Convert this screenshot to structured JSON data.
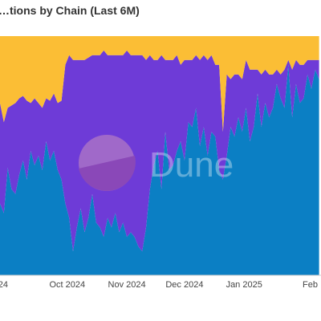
{
  "chart_data": {
    "type": "area",
    "stacked": true,
    "normalized": true,
    "title": "…tions by Chain (Last 6M)",
    "xlabel": "",
    "ylabel": "",
    "ylim": [
      0,
      1
    ],
    "x_tick_labels": [
      "…24",
      "Oct 2024",
      "Nov 2024",
      "Dec 2024",
      "Jan 2025",
      "Feb …"
    ],
    "x_range": [
      "2024-09-10",
      "2025-02-24"
    ],
    "grid": false,
    "legend": "none",
    "watermark": "Dune",
    "x": [
      "2024-09-10",
      "2024-09-12",
      "2024-09-14",
      "2024-09-16",
      "2024-09-18",
      "2024-09-20",
      "2024-09-22",
      "2024-09-24",
      "2024-09-26",
      "2024-09-28",
      "2024-09-30",
      "2024-10-02",
      "2024-10-04",
      "2024-10-06",
      "2024-10-08",
      "2024-10-10",
      "2024-10-12",
      "2024-10-14",
      "2024-10-16",
      "2024-10-18",
      "2024-10-20",
      "2024-10-22",
      "2024-10-24",
      "2024-10-26",
      "2024-10-28",
      "2024-10-30",
      "2024-11-01",
      "2024-11-03",
      "2024-11-05",
      "2024-11-07",
      "2024-11-09",
      "2024-11-11",
      "2024-11-13",
      "2024-11-15",
      "2024-11-17",
      "2024-11-19",
      "2024-11-21",
      "2024-11-23",
      "2024-11-25",
      "2024-11-27",
      "2024-11-29",
      "2024-12-01",
      "2024-12-03",
      "2024-12-05",
      "2024-12-07",
      "2024-12-09",
      "2024-12-11",
      "2024-12-13",
      "2024-12-15",
      "2024-12-17",
      "2024-12-19",
      "2024-12-21",
      "2024-12-23",
      "2024-12-25",
      "2024-12-27",
      "2024-12-29",
      "2024-12-31",
      "2025-01-02",
      "2025-01-04",
      "2025-01-06",
      "2025-01-08",
      "2025-01-10",
      "2025-01-12",
      "2025-01-14",
      "2025-01-16",
      "2025-01-18",
      "2025-01-20",
      "2025-01-22",
      "2025-01-24",
      "2025-01-26",
      "2025-01-28",
      "2025-01-30",
      "2025-02-01",
      "2025-02-03",
      "2025-02-05",
      "2025-02-07",
      "2025-02-09",
      "2025-02-11",
      "2025-02-13",
      "2025-02-15",
      "2025-02-17",
      "2025-02-19",
      "2025-02-21",
      "2025-02-23"
    ],
    "series": [
      {
        "color": "#0b7fc4",
        "values": [
          0.3,
          0.26,
          0.45,
          0.36,
          0.34,
          0.42,
          0.48,
          0.4,
          0.52,
          0.46,
          0.5,
          0.44,
          0.56,
          0.48,
          0.52,
          0.44,
          0.4,
          0.3,
          0.24,
          0.1,
          0.2,
          0.28,
          0.18,
          0.24,
          0.34,
          0.22,
          0.2,
          0.16,
          0.24,
          0.2,
          0.26,
          0.18,
          0.22,
          0.16,
          0.18,
          0.16,
          0.12,
          0.1,
          0.2,
          0.36,
          0.46,
          0.52,
          0.36,
          0.6,
          0.44,
          0.46,
          0.52,
          0.56,
          0.48,
          0.64,
          0.62,
          0.7,
          0.54,
          0.62,
          0.5,
          0.6,
          0.58,
          0.44,
          0.4,
          0.5,
          0.62,
          0.58,
          0.66,
          0.6,
          0.7,
          0.56,
          0.62,
          0.76,
          0.62,
          0.72,
          0.66,
          0.7,
          0.8,
          0.74,
          0.7,
          0.88,
          0.66,
          0.8,
          0.72,
          0.74,
          0.84,
          0.78,
          0.86,
          0.82
        ]
      },
      {
        "color": "#6e3bd7",
        "values": [
          0.42,
          0.38,
          0.25,
          0.35,
          0.38,
          0.32,
          0.27,
          0.33,
          0.2,
          0.28,
          0.22,
          0.26,
          0.18,
          0.25,
          0.24,
          0.28,
          0.33,
          0.58,
          0.68,
          0.8,
          0.7,
          0.62,
          0.72,
          0.67,
          0.58,
          0.7,
          0.72,
          0.78,
          0.68,
          0.72,
          0.66,
          0.74,
          0.7,
          0.78,
          0.74,
          0.76,
          0.8,
          0.82,
          0.7,
          0.56,
          0.44,
          0.38,
          0.56,
          0.3,
          0.46,
          0.44,
          0.4,
          0.32,
          0.42,
          0.26,
          0.28,
          0.22,
          0.36,
          0.3,
          0.4,
          0.32,
          0.3,
          0.44,
          0.2,
          0.34,
          0.2,
          0.26,
          0.18,
          0.22,
          0.2,
          0.3,
          0.24,
          0.1,
          0.22,
          0.14,
          0.18,
          0.14,
          0.06,
          0.1,
          0.16,
          0.02,
          0.2,
          0.1,
          0.16,
          0.14,
          0.06,
          0.12,
          0.04,
          0.08
        ]
      },
      {
        "color": "#fbbe35",
        "values": [
          0.28,
          0.36,
          0.3,
          0.29,
          0.28,
          0.26,
          0.25,
          0.27,
          0.28,
          0.26,
          0.28,
          0.3,
          0.26,
          0.27,
          0.24,
          0.28,
          0.27,
          0.12,
          0.08,
          0.1,
          0.1,
          0.1,
          0.1,
          0.09,
          0.08,
          0.08,
          0.08,
          0.06,
          0.08,
          0.08,
          0.08,
          0.08,
          0.08,
          0.06,
          0.08,
          0.08,
          0.08,
          0.08,
          0.1,
          0.08,
          0.1,
          0.1,
          0.08,
          0.1,
          0.1,
          0.1,
          0.08,
          0.12,
          0.1,
          0.1,
          0.1,
          0.08,
          0.1,
          0.08,
          0.1,
          0.08,
          0.12,
          0.12,
          0.4,
          0.16,
          0.18,
          0.16,
          0.16,
          0.18,
          0.1,
          0.14,
          0.14,
          0.14,
          0.16,
          0.14,
          0.16,
          0.16,
          0.14,
          0.16,
          0.14,
          0.1,
          0.14,
          0.1,
          0.12,
          0.12,
          0.1,
          0.1,
          0.1,
          0.1
        ]
      }
    ]
  }
}
